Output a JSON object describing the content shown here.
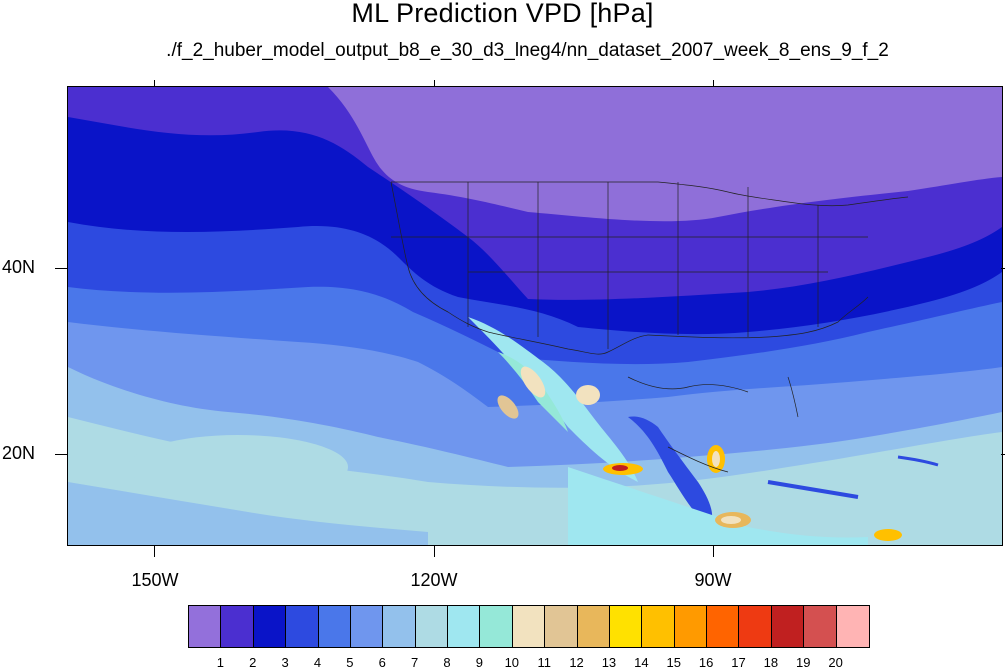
{
  "title": "ML Prediction VPD [hPa]",
  "subtitle": "./f_2_huber_model_output_b8_e_30_d3_lneg4/nn_dataset_2007_week_8_ens_9_f_2",
  "lat_labels": [
    "40N",
    "20N"
  ],
  "lon_labels": [
    "150W",
    "120W",
    "90W"
  ],
  "colorbar": {
    "colors": [
      "#9370db",
      "#4b2fd0",
      "#0a14c8",
      "#2d4ae0",
      "#4a77ea",
      "#6f96ee",
      "#93c1ec",
      "#aedbe4",
      "#9fe7f0",
      "#95e8d8",
      "#f2e2bf",
      "#e1c595",
      "#e8b75b",
      "#ffe100",
      "#ffc000",
      "#ff9a00",
      "#ff6400",
      "#ee3a12",
      "#c02020",
      "#d45050",
      "#ffb4b4"
    ],
    "labels": [
      "1",
      "2",
      "3",
      "4",
      "5",
      "6",
      "7",
      "8",
      "9",
      "10",
      "11",
      "12",
      "13",
      "14",
      "15",
      "16",
      "17",
      "18",
      "19",
      "20"
    ]
  }
}
